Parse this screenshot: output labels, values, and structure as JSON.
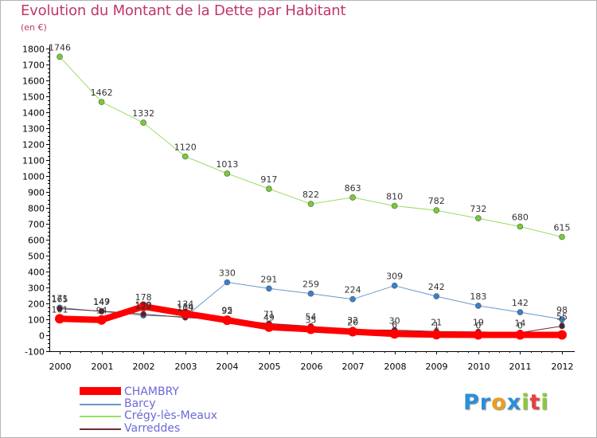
{
  "chart_data": {
    "type": "line",
    "title": "Evolution du Montant de la Dette par Habitant",
    "subtitle": "(en €)",
    "xlabel": "",
    "ylabel": "",
    "categories": [
      "2000",
      "2001",
      "2002",
      "2003",
      "2004",
      "2005",
      "2006",
      "2007",
      "2008",
      "2009",
      "2010",
      "2011",
      "2012"
    ],
    "ylim": [
      -100,
      1800
    ],
    "yticks": [
      -100,
      0,
      100,
      200,
      300,
      400,
      500,
      600,
      700,
      800,
      900,
      1000,
      1100,
      1200,
      1300,
      1400,
      1500,
      1600,
      1700,
      1800
    ],
    "grid": false,
    "legend_position": "bottom-left",
    "series": [
      {
        "name": "CHAMBRY",
        "color": "#ff0000",
        "marker_color": "#ff0000",
        "width": 8,
        "values": [
          101,
          94,
          178,
          134,
          92,
          49,
          35,
          20,
          6,
          1,
          0,
          0,
          0
        ],
        "labels": [
          "101",
          "94",
          "178",
          "134",
          "92",
          "49",
          "35",
          "20",
          "6",
          "1",
          "0",
          "0",
          "0"
        ]
      },
      {
        "name": "Barcy",
        "color": "#6699cc",
        "marker_color": "#3a7fd0",
        "width": 1,
        "values": [
          171,
          147,
          122,
          114,
          330,
          291,
          259,
          224,
          309,
          242,
          183,
          142,
          98
        ],
        "labels": [
          "171",
          "147",
          "122",
          "114",
          "330",
          "291",
          "259",
          "224",
          "309",
          "242",
          "183",
          "142",
          "98"
        ]
      },
      {
        "name": "Crégy-lès-Meaux",
        "color": "#99dd66",
        "marker_color": "#77cc33",
        "width": 1,
        "values": [
          1746,
          1462,
          1332,
          1120,
          1013,
          917,
          822,
          863,
          810,
          782,
          732,
          680,
          615
        ],
        "labels": [
          "1746",
          "1462",
          "1332",
          "1120",
          "1013",
          "917",
          "822",
          "863",
          "810",
          "782",
          "732",
          "680",
          "615"
        ]
      },
      {
        "name": "Varreddes",
        "color": "#6b2c3a",
        "marker_color": "#5a1f2c",
        "width": 1,
        "values": [
          165,
          149,
          130,
          109,
          95,
          71,
          54,
          32,
          30,
          21,
          19,
          14,
          55
        ],
        "labels": [
          "165",
          "149",
          "130",
          "109",
          "95",
          "71",
          "54",
          "32",
          "30",
          "21",
          "19",
          "14",
          "55"
        ]
      }
    ]
  },
  "logo": {
    "letters": [
      "P",
      "r",
      "o",
      "x",
      "i",
      "t",
      "i"
    ],
    "colors": [
      "#2a8fd8",
      "#2a8fd8",
      "#e8a020",
      "#2a8fd8",
      "#88cc33",
      "#e84040",
      "#88cc33"
    ]
  }
}
